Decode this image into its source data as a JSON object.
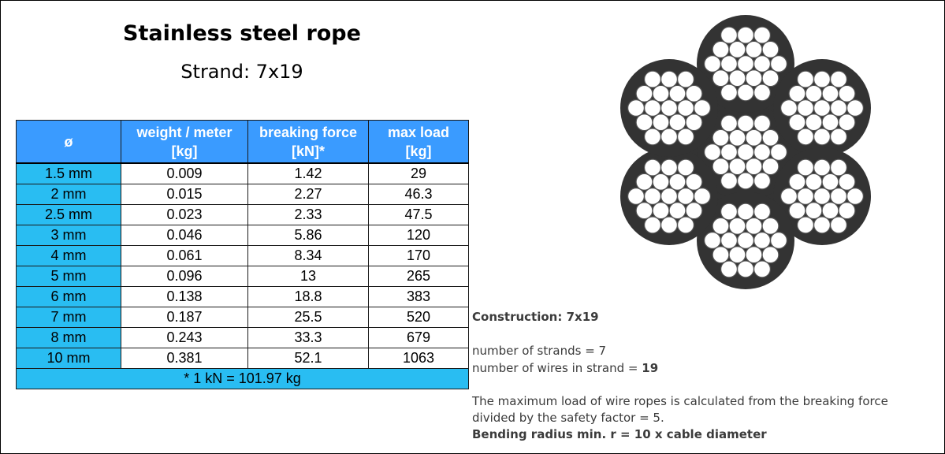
{
  "header": {
    "title": "Stainless steel rope",
    "subtitle": "Strand: 7x19"
  },
  "table": {
    "headers": [
      {
        "line1": "ø",
        "line2": ""
      },
      {
        "line1": "weight / meter",
        "line2": "[kg]"
      },
      {
        "line1": "breaking force",
        "line2": "[kN]*"
      },
      {
        "line1": "max load",
        "line2": "[kg]"
      }
    ],
    "rows": [
      [
        "1.5 mm",
        "0.009",
        "1.42",
        "29"
      ],
      [
        "2 mm",
        "0.015",
        "2.27",
        "46.3"
      ],
      [
        "2.5 mm",
        "0.023",
        "2.33",
        "47.5"
      ],
      [
        "3 mm",
        "0.046",
        "5.86",
        "120"
      ],
      [
        "4 mm",
        "0.061",
        "8.34",
        "170"
      ],
      [
        "5 mm",
        "0.096",
        "13",
        "265"
      ],
      [
        "6 mm",
        "0.138",
        "18.8",
        "383"
      ],
      [
        "7 mm",
        "0.187",
        "25.5",
        "520"
      ],
      [
        "8 mm",
        "0.243",
        "33.3",
        "679"
      ],
      [
        "10 mm",
        "0.381",
        "52.1",
        "1063"
      ]
    ],
    "footnote": "* 1 kN = 101.97 kg"
  },
  "info": {
    "construction": "Construction: 7x19",
    "strands": "number of strands = 7",
    "wires_label": "number of wires in strand = ",
    "wires_value": "19",
    "load_line1": "The maximum load of wire ropes is calculated from the breaking force",
    "load_line2": "divided by the safety factor = 5.",
    "bending": "Bending radius min. r = 10 x cable diameter"
  },
  "colors": {
    "header_bg": "#3a9bff",
    "diameter_bg": "#29bdf2",
    "rope_core": "#333333",
    "wire_fill": "#ffffff"
  }
}
